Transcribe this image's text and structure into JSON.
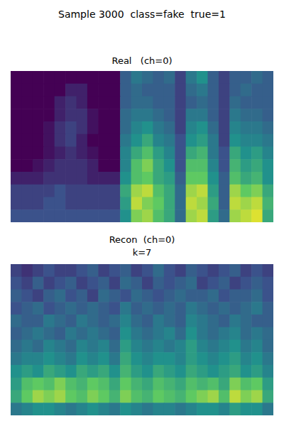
{
  "title": "Sample 3000  class=fake  true=1",
  "chart_data": [
    {
      "type": "heatmap",
      "title": "Real   (ch=0)",
      "tick_labels": false,
      "zlim": [
        0,
        1
      ],
      "cells": [
        [
          0,
          0,
          0,
          0,
          0,
          0,
          0,
          0,
          0,
          0,
          0.3,
          0.4,
          0.35,
          0.3,
          0.35,
          0.2,
          0.4,
          0.5,
          0.3,
          0.2,
          0.3,
          0.3,
          0.35,
          0.3
        ],
        [
          0,
          0,
          0,
          0,
          0,
          0.1,
          0.1,
          0,
          0,
          0,
          0.3,
          0.35,
          0.3,
          0.3,
          0.3,
          0.2,
          0.35,
          0.4,
          0.3,
          0.2,
          0.3,
          0.35,
          0.3,
          0.3
        ],
        [
          0,
          0,
          0,
          0,
          0.1,
          0.15,
          0.1,
          0,
          0,
          0,
          0.3,
          0.35,
          0.35,
          0.3,
          0.3,
          0.2,
          0.3,
          0.35,
          0.3,
          0.2,
          0.35,
          0.3,
          0.3,
          0.3
        ],
        [
          0,
          0,
          0,
          0,
          0.1,
          0.15,
          0.15,
          0.05,
          0,
          0,
          0.35,
          0.4,
          0.4,
          0.35,
          0.3,
          0.2,
          0.4,
          0.4,
          0.3,
          0.2,
          0.4,
          0.35,
          0.35,
          0.3
        ],
        [
          0,
          0,
          0,
          0.05,
          0.15,
          0.2,
          0.15,
          0.05,
          0,
          0,
          0.35,
          0.45,
          0.5,
          0.4,
          0.35,
          0.2,
          0.45,
          0.5,
          0.35,
          0.2,
          0.45,
          0.4,
          0.4,
          0.35
        ],
        [
          0,
          0,
          0,
          0.05,
          0.15,
          0.2,
          0.1,
          0,
          0,
          0,
          0.4,
          0.5,
          0.6,
          0.45,
          0.4,
          0.25,
          0.5,
          0.55,
          0.4,
          0.2,
          0.5,
          0.45,
          0.45,
          0.4
        ],
        [
          0,
          0,
          0,
          0.05,
          0.1,
          0.15,
          0.1,
          0.05,
          0,
          0,
          0.45,
          0.6,
          0.7,
          0.55,
          0.45,
          0.25,
          0.6,
          0.65,
          0.4,
          0.25,
          0.6,
          0.5,
          0.55,
          0.45
        ],
        [
          0,
          0,
          0.05,
          0.1,
          0.15,
          0.15,
          0.15,
          0.1,
          0,
          0,
          0.45,
          0.7,
          0.8,
          0.6,
          0.5,
          0.25,
          0.7,
          0.7,
          0.45,
          0.25,
          0.65,
          0.55,
          0.6,
          0.5
        ],
        [
          0.1,
          0.1,
          0.1,
          0.15,
          0.15,
          0.15,
          0.15,
          0.1,
          0.1,
          0.1,
          0.5,
          0.7,
          0.75,
          0.6,
          0.55,
          0.3,
          0.75,
          0.75,
          0.5,
          0.3,
          0.7,
          0.6,
          0.65,
          0.5
        ],
        [
          0.2,
          0.2,
          0.2,
          0.2,
          0.25,
          0.2,
          0.2,
          0.2,
          0.2,
          0.2,
          0.6,
          0.85,
          0.9,
          0.7,
          0.6,
          0.35,
          0.85,
          0.9,
          0.55,
          0.3,
          0.85,
          0.75,
          0.8,
          0.6
        ],
        [
          0.2,
          0.2,
          0.2,
          0.25,
          0.25,
          0.2,
          0.2,
          0.2,
          0.2,
          0.2,
          0.55,
          0.9,
          0.8,
          0.75,
          0.6,
          0.35,
          0.9,
          0.85,
          0.6,
          0.3,
          0.9,
          0.85,
          0.9,
          0.65
        ],
        [
          0.25,
          0.25,
          0.25,
          0.25,
          0.25,
          0.25,
          0.25,
          0.25,
          0.25,
          0.25,
          0.5,
          0.8,
          0.85,
          0.7,
          0.6,
          0.35,
          0.85,
          0.9,
          0.55,
          0.35,
          0.85,
          0.9,
          0.95,
          0.6
        ]
      ]
    },
    {
      "type": "heatmap",
      "title": "Recon  (ch=0)",
      "subtitle": "k=7",
      "tick_labels": false,
      "zlim": [
        0,
        1
      ],
      "cells": [
        [
          0.2,
          0.15,
          0.2,
          0.25,
          0.2,
          0.2,
          0.25,
          0.3,
          0.2,
          0.25,
          0.3,
          0.2,
          0.25,
          0.35,
          0.25,
          0.2,
          0.3,
          0.25,
          0.2,
          0.25,
          0.3,
          0.2,
          0.25,
          0.2
        ],
        [
          0.25,
          0.2,
          0.3,
          0.2,
          0.25,
          0.3,
          0.2,
          0.25,
          0.3,
          0.2,
          0.35,
          0.3,
          0.2,
          0.3,
          0.25,
          0.3,
          0.35,
          0.2,
          0.25,
          0.3,
          0.2,
          0.25,
          0.3,
          0.25
        ],
        [
          0.3,
          0.25,
          0.2,
          0.3,
          0.35,
          0.25,
          0.3,
          0.2,
          0.35,
          0.3,
          0.25,
          0.35,
          0.3,
          0.25,
          0.3,
          0.35,
          0.3,
          0.3,
          0.35,
          0.25,
          0.3,
          0.3,
          0.35,
          0.25
        ],
        [
          0.25,
          0.3,
          0.35,
          0.25,
          0.3,
          0.35,
          0.3,
          0.35,
          0.3,
          0.25,
          0.4,
          0.3,
          0.35,
          0.3,
          0.35,
          0.3,
          0.4,
          0.35,
          0.3,
          0.35,
          0.3,
          0.35,
          0.4,
          0.3
        ],
        [
          0.35,
          0.3,
          0.3,
          0.4,
          0.35,
          0.3,
          0.4,
          0.35,
          0.3,
          0.35,
          0.45,
          0.35,
          0.3,
          0.4,
          0.35,
          0.3,
          0.45,
          0.4,
          0.35,
          0.3,
          0.4,
          0.35,
          0.3,
          0.3
        ],
        [
          0.3,
          0.35,
          0.4,
          0.35,
          0.3,
          0.4,
          0.35,
          0.4,
          0.35,
          0.3,
          0.5,
          0.4,
          0.35,
          0.4,
          0.45,
          0.35,
          0.5,
          0.4,
          0.35,
          0.4,
          0.45,
          0.35,
          0.4,
          0.35
        ],
        [
          0.35,
          0.4,
          0.35,
          0.45,
          0.4,
          0.35,
          0.45,
          0.4,
          0.45,
          0.35,
          0.55,
          0.45,
          0.4,
          0.45,
          0.4,
          0.45,
          0.55,
          0.45,
          0.4,
          0.45,
          0.5,
          0.4,
          0.45,
          0.35
        ],
        [
          0.4,
          0.45,
          0.45,
          0.5,
          0.45,
          0.4,
          0.5,
          0.45,
          0.5,
          0.4,
          0.6,
          0.5,
          0.45,
          0.5,
          0.5,
          0.45,
          0.55,
          0.5,
          0.45,
          0.5,
          0.55,
          0.45,
          0.5,
          0.4
        ],
        [
          0.5,
          0.55,
          0.5,
          0.6,
          0.55,
          0.5,
          0.6,
          0.55,
          0.6,
          0.5,
          0.65,
          0.55,
          0.5,
          0.6,
          0.55,
          0.5,
          0.6,
          0.55,
          0.5,
          0.55,
          0.6,
          0.5,
          0.55,
          0.45
        ],
        [
          0.55,
          0.7,
          0.75,
          0.7,
          0.8,
          0.7,
          0.65,
          0.75,
          0.7,
          0.6,
          0.75,
          0.65,
          0.6,
          0.7,
          0.65,
          0.6,
          0.7,
          0.65,
          0.7,
          0.6,
          0.8,
          0.7,
          0.75,
          0.55
        ],
        [
          0.6,
          0.75,
          0.85,
          0.8,
          0.85,
          0.75,
          0.7,
          0.8,
          0.75,
          0.65,
          0.8,
          0.7,
          0.65,
          0.75,
          0.7,
          0.65,
          0.75,
          0.8,
          0.85,
          0.7,
          0.9,
          0.8,
          0.85,
          0.6
        ],
        [
          0.4,
          0.45,
          0.5,
          0.5,
          0.45,
          0.4,
          0.45,
          0.5,
          0.45,
          0.4,
          0.5,
          0.45,
          0.4,
          0.45,
          0.45,
          0.4,
          0.45,
          0.5,
          0.5,
          0.45,
          0.55,
          0.5,
          0.5,
          0.4
        ]
      ]
    }
  ]
}
